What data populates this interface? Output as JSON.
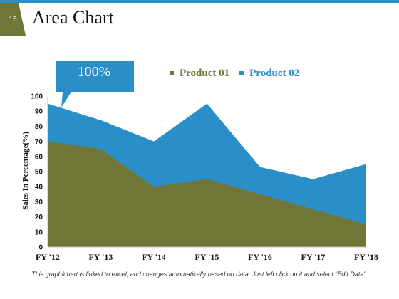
{
  "slide": {
    "number": "15",
    "title": "Area Chart",
    "callout": "100%",
    "footnote": "This graph/chart is linked to excel, and changes automatically based on data. Just left click on it and select “Edit Data”."
  },
  "colors": {
    "accent": "#2a8fc9",
    "badge": "#6f7638",
    "product01": "#6f7638",
    "product02": "#2a8fc9"
  },
  "chart_data": {
    "type": "area",
    "categories": [
      "FY '12",
      "FY '13",
      "FY '14",
      "FY '15",
      "FY '16",
      "FY '17",
      "FY '18"
    ],
    "series": [
      {
        "name": "Product 01",
        "values": [
          70,
          65,
          40,
          45,
          35,
          25,
          15
        ]
      },
      {
        "name": "Product 02",
        "values": [
          95,
          84,
          70,
          95,
          53,
          45,
          55
        ]
      }
    ],
    "ylabel": "Sales In Percentage(%)",
    "xlabel": "",
    "ylim": [
      0,
      100
    ],
    "yticks": [
      "0",
      "10",
      "20",
      "30",
      "40",
      "50",
      "60",
      "70",
      "80",
      "90",
      "100"
    ],
    "grid": false,
    "legend_position": "top"
  }
}
